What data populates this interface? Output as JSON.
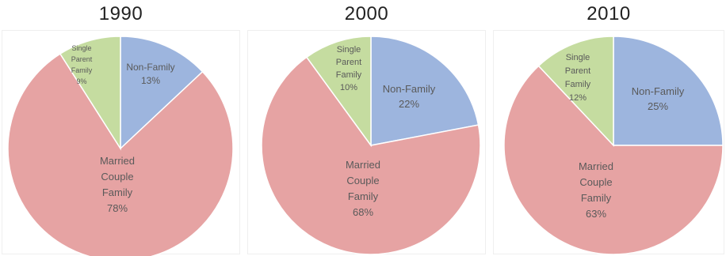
{
  "chart_data": [
    {
      "type": "pie",
      "title": "1990",
      "slices": [
        {
          "name": "Non-Family",
          "label_lines": [
            "Non-Family",
            "13%"
          ],
          "value": 13,
          "color": "#9db5de"
        },
        {
          "name": "Married Couple Family",
          "label_lines": [
            "Married",
            "Couple",
            "Family",
            "78%"
          ],
          "value": 78,
          "color": "#e6a3a3"
        },
        {
          "name": "Single Parent Family",
          "label_lines": [
            "Single",
            "Parent",
            "Family",
            "9%"
          ],
          "value": 9,
          "color": "#c5dca0"
        }
      ]
    },
    {
      "type": "pie",
      "title": "2000",
      "slices": [
        {
          "name": "Non-Family",
          "label_lines": [
            "Non-Family",
            "22%"
          ],
          "value": 22,
          "color": "#9db5de"
        },
        {
          "name": "Married Couple Family",
          "label_lines": [
            "Married",
            "Couple",
            "Family",
            "68%"
          ],
          "value": 68,
          "color": "#e6a3a3"
        },
        {
          "name": "Single Parent Family",
          "label_lines": [
            "Single",
            "Parent",
            "Family",
            "10%"
          ],
          "value": 10,
          "color": "#c5dca0"
        }
      ]
    },
    {
      "type": "pie",
      "title": "2010",
      "slices": [
        {
          "name": "Non-Family",
          "label_lines": [
            "Non-Family",
            "25%"
          ],
          "value": 25,
          "color": "#9db5de"
        },
        {
          "name": "Married Couple Family",
          "label_lines": [
            "Married",
            "Couple",
            "Family",
            "63%"
          ],
          "value": 63,
          "color": "#e6a3a3"
        },
        {
          "name": "Single Parent Family",
          "label_lines": [
            "Single",
            "Parent",
            "Family",
            "12%"
          ],
          "value": 12,
          "color": "#c5dca0"
        }
      ]
    }
  ]
}
